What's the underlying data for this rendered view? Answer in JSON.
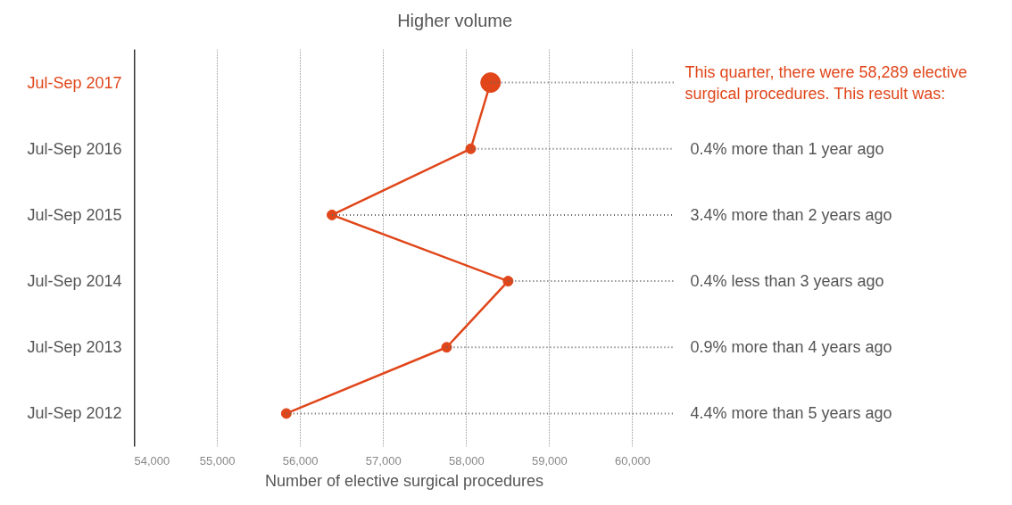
{
  "chart_data": {
    "type": "line",
    "orientation": "horizontal",
    "categories": [
      "Jul-Sep 2017",
      "Jul-Sep 2016",
      "Jul-Sep 2015",
      "Jul-Sep 2014",
      "Jul-Sep 2013",
      "Jul-Sep 2012"
    ],
    "series": [
      {
        "color": "#e0461a",
        "values": [
          58289,
          58050,
          56380,
          58500,
          57760,
          55830
        ]
      }
    ],
    "xlabel": "Number of elective surgical procedures",
    "xlim": [
      54000,
      60500
    ],
    "xticks": [
      {
        "value": 54000,
        "label": "54,000"
      },
      {
        "value": 55000,
        "label": "55,000"
      },
      {
        "value": 56000,
        "label": "56,000"
      },
      {
        "value": 57000,
        "label": "57,000"
      },
      {
        "value": 58000,
        "label": "58,000"
      },
      {
        "value": 59000,
        "label": "59,000"
      },
      {
        "value": 60000,
        "label": "60,000"
      }
    ],
    "grid": "x",
    "marker": "circle",
    "line_style": "solid",
    "annotations": [
      "Higher volume",
      {
        "text": "This quarter, there were 58,289 elective surgical procedures. This result was:",
        "x": 58289,
        "y": "Jul-Sep 2017"
      },
      {
        "text": "0.4% more than 1 year ago",
        "x": 58050,
        "y": "Jul-Sep 2016"
      },
      {
        "text": "3.4% more than 2 years ago",
        "x": 56380,
        "y": "Jul-Sep 2015"
      },
      {
        "text": "0.4% less than 3 years ago",
        "x": 58500,
        "y": "Jul-Sep 2014"
      },
      {
        "text": "0.9% more than 4 years ago",
        "x": 57760,
        "y": "Jul-Sep 2013"
      },
      {
        "text": "4.4% more than 5 years ago",
        "x": 55830,
        "y": "Jul-Sep 2012"
      }
    ]
  }
}
